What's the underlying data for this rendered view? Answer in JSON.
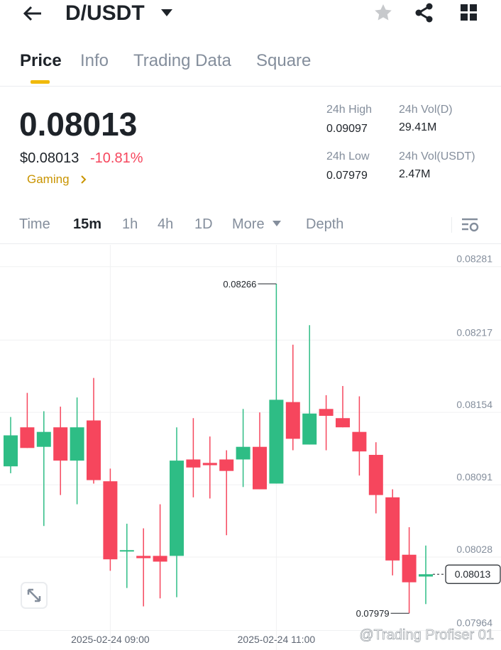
{
  "header": {
    "title": "D/USDT"
  },
  "tabs": [
    "Price",
    "Info",
    "Trading Data",
    "Square"
  ],
  "price": {
    "last": "0.08013",
    "usd": "$0.08013",
    "change": "-10.81%",
    "tag": "Gaming"
  },
  "stats": [
    {
      "label": "24h High",
      "value": "0.09097"
    },
    {
      "label": "24h Vol(D)",
      "value": "29.41M"
    },
    {
      "label": "24h Low",
      "value": "0.07979"
    },
    {
      "label": "24h Vol(USDT)",
      "value": "2.47M"
    }
  ],
  "intervals": [
    "Time",
    "15m",
    "1h",
    "4h",
    "1D",
    "More",
    "Depth"
  ],
  "watermark": "@Trading Profiser 01",
  "chart_data": {
    "type": "candlestick",
    "categories": [
      null,
      null,
      null,
      null,
      null,
      null,
      "2025-02-24 09:00",
      null,
      null,
      null,
      null,
      null,
      null,
      null,
      null,
      null,
      "2025-02-24 11:00",
      null,
      null,
      null,
      null,
      null,
      null,
      null,
      null,
      null
    ],
    "open": [
      0.08107,
      0.08141,
      0.08124,
      0.08141,
      0.08112,
      0.08147,
      0.08094,
      0.08033,
      0.08029,
      0.08029,
      0.08029,
      0.08113,
      0.0811,
      0.08113,
      0.08113,
      0.08124,
      0.08092,
      0.08163,
      0.08126,
      0.08157,
      0.08149,
      0.08137,
      0.08117,
      0.0808,
      0.0803,
      0.08011
    ],
    "high": [
      0.0815,
      0.08171,
      0.08155,
      0.08159,
      0.08167,
      0.08184,
      0.08105,
      0.08057,
      0.08053,
      0.08074,
      0.08141,
      0.08149,
      0.08133,
      0.08121,
      0.08157,
      0.08154,
      0.08266,
      0.08213,
      0.0823,
      0.08169,
      0.08177,
      0.08168,
      0.08128,
      0.08087,
      0.08054,
      0.08038
    ],
    "low": [
      0.08101,
      0.08123,
      0.08055,
      0.08082,
      0.08074,
      0.08092,
      0.08016,
      0.08001,
      0.07985,
      0.07992,
      0.07993,
      0.0808,
      0.08079,
      0.08047,
      0.08089,
      0.08087,
      0.08092,
      0.08121,
      0.08126,
      0.08121,
      0.08141,
      0.08099,
      0.08066,
      0.08012,
      0.07979,
      0.07987
    ],
    "close": [
      0.08134,
      0.08123,
      0.08137,
      0.08112,
      0.08141,
      0.08095,
      0.08026,
      0.08034,
      0.08027,
      0.08024,
      0.08112,
      0.08106,
      0.08108,
      0.08103,
      0.08124,
      0.08087,
      0.08165,
      0.08131,
      0.08153,
      0.08151,
      0.08141,
      0.0812,
      0.08082,
      0.08025,
      0.08006,
      0.08013
    ],
    "up_color": "#2ebd85",
    "down_color": "#f6465d",
    "ylim": [
      0.07947,
      0.083
    ],
    "yticks": [
      0.08281,
      0.08217,
      0.08154,
      0.08091,
      0.08028,
      0.07964
    ],
    "grid": true
  }
}
